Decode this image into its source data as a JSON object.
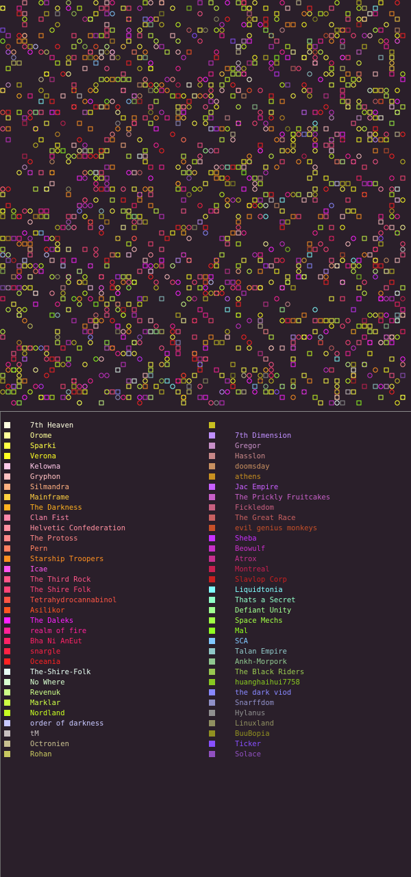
{
  "legend_left": [
    {
      "name": "7th Heaven",
      "color": "#ffffe0"
    },
    {
      "name": "Orome",
      "color": "#ffff99"
    },
    {
      "name": "Sparki",
      "color": "#ffff44"
    },
    {
      "name": "Verona",
      "color": "#ffff22"
    },
    {
      "name": "Kelowna",
      "color": "#ffc8e8"
    },
    {
      "name": "Gryphon",
      "color": "#ffc0c0"
    },
    {
      "name": "Silmandra",
      "color": "#ffb080"
    },
    {
      "name": "Mainframe",
      "color": "#ffd040"
    },
    {
      "name": "The Darkness",
      "color": "#ffb020"
    },
    {
      "name": "Clan Fist",
      "color": "#ff88aa"
    },
    {
      "name": "Helvetic Confederation",
      "color": "#ff90a0"
    },
    {
      "name": "The Protoss",
      "color": "#ff8888"
    },
    {
      "name": "Pern",
      "color": "#ff8060"
    },
    {
      "name": "Starship Troopers",
      "color": "#ff9020"
    },
    {
      "name": "Icae",
      "color": "#ff55ee"
    },
    {
      "name": "The Third Rock",
      "color": "#ff5588"
    },
    {
      "name": "The Shire Folk",
      "color": "#ff4477"
    },
    {
      "name": "Tetrahydrocannabinol",
      "color": "#ff5544"
    },
    {
      "name": "Asilikor",
      "color": "#ff5522"
    },
    {
      "name": "The Daleks",
      "color": "#ff22ff"
    },
    {
      "name": "realm of fire",
      "color": "#ff2299"
    },
    {
      "name": "Bha Ni AnEut",
      "color": "#ff2266"
    },
    {
      "name": "snargle",
      "color": "#ff2244"
    },
    {
      "name": "Oceania",
      "color": "#ff2222"
    },
    {
      "name": "The-Shire-Folk",
      "color": "#e8fff4"
    },
    {
      "name": "No Where",
      "color": "#d8ffd0"
    },
    {
      "name": "Revenuk",
      "color": "#ccff88"
    },
    {
      "name": "Marklar",
      "color": "#ccff44"
    },
    {
      "name": "Nordland",
      "color": "#c8ff22"
    },
    {
      "name": "order of darkness",
      "color": "#c8c8ff"
    },
    {
      "name": "tM",
      "color": "#c8c0c0"
    },
    {
      "name": "Octronien",
      "color": "#c8c090"
    },
    {
      "name": "Rohan",
      "color": "#c8c860"
    }
  ],
  "legend_right": [
    {
      "name": "",
      "color": "#c8c020"
    },
    {
      "name": "7th Dimension",
      "color": "#c090ff"
    },
    {
      "name": "Gregor",
      "color": "#c890c8"
    },
    {
      "name": "Hasslon",
      "color": "#c88888"
    },
    {
      "name": "doomsday",
      "color": "#c89060"
    },
    {
      "name": "athens",
      "color": "#c89020"
    },
    {
      "name": "Jac Empire",
      "color": "#c860ff"
    },
    {
      "name": "The Prickly Fruitcakes",
      "color": "#c860c8"
    },
    {
      "name": "Fickledom",
      "color": "#c86080"
    },
    {
      "name": "The Great Race",
      "color": "#c86060"
    },
    {
      "name": "evil genius monkeys",
      "color": "#c85028"
    },
    {
      "name": "Sheba",
      "color": "#c830ff"
    },
    {
      "name": "Beowulf",
      "color": "#c830c8"
    },
    {
      "name": "Atrox",
      "color": "#c83090"
    },
    {
      "name": "Montreal",
      "color": "#c82050"
    },
    {
      "name": "Slavlop Corp",
      "color": "#c82020"
    },
    {
      "name": "Liquidtonia",
      "color": "#80ffff"
    },
    {
      "name": "Thats a Secret",
      "color": "#90ffc8"
    },
    {
      "name": "Defiant Unity",
      "color": "#a0ff90"
    },
    {
      "name": "Space Mechs",
      "color": "#a0ff44"
    },
    {
      "name": "Mal",
      "color": "#90ff20"
    },
    {
      "name": "SCA",
      "color": "#80c8ff"
    },
    {
      "name": "Talan Empire",
      "color": "#90c8c8"
    },
    {
      "name": "Ankh-Morpork",
      "color": "#90c890"
    },
    {
      "name": "The Black Riders",
      "color": "#98c850"
    },
    {
      "name": "huanghaihui7758",
      "color": "#88c820"
    },
    {
      "name": "the dark viod",
      "color": "#8888ff"
    },
    {
      "name": "Snarffdom",
      "color": "#9090c8"
    },
    {
      "name": "Hylanus",
      "color": "#909090"
    },
    {
      "name": "Linuxland",
      "color": "#909060"
    },
    {
      "name": "BuuBopia",
      "color": "#909020"
    },
    {
      "name": "Ticker",
      "color": "#8850ff"
    },
    {
      "name": "Solace",
      "color": "#9050c0"
    }
  ]
}
